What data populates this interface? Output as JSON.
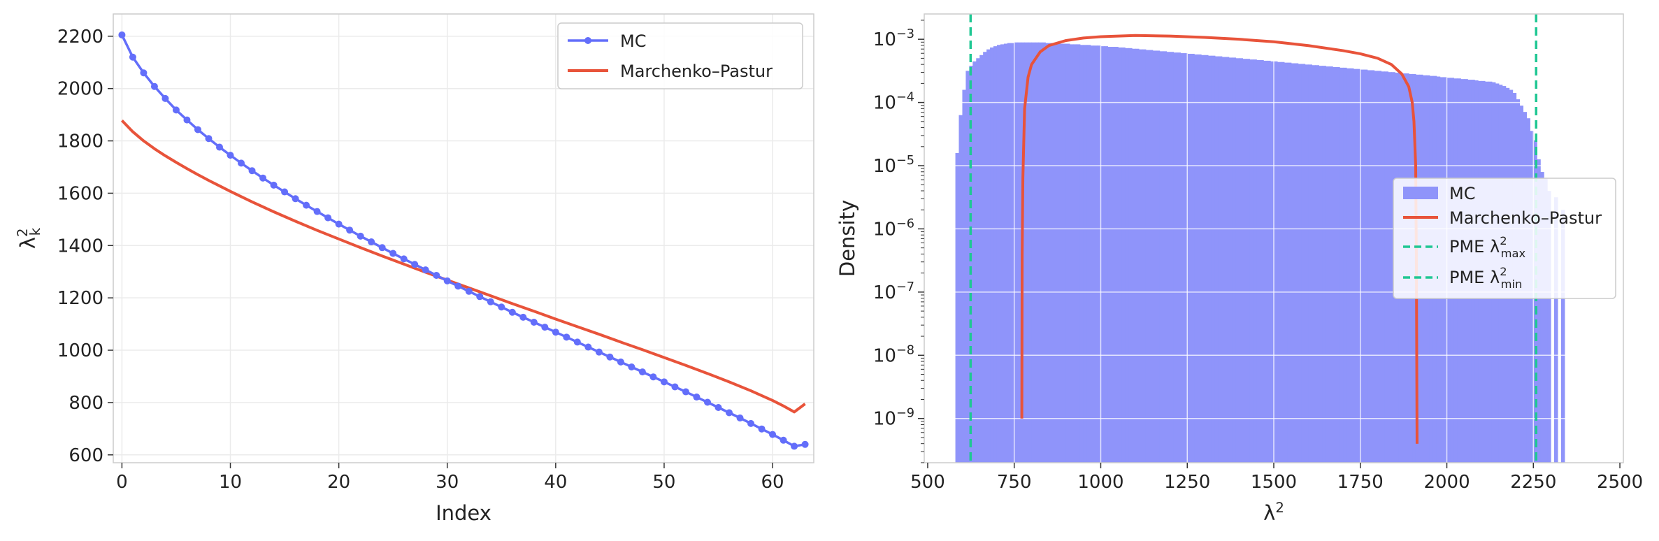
{
  "chart_data": [
    {
      "type": "line",
      "xlabel": "Index",
      "ylabel": "λ",
      "ylabel_sup": "2",
      "ylabel_sub": "k",
      "xlim": [
        -0.8,
        63.8
      ],
      "ylim": [
        570,
        2285
      ],
      "xticks": [
        0,
        10,
        20,
        30,
        40,
        50,
        60
      ],
      "yticks": [
        600,
        800,
        1000,
        1200,
        1400,
        1600,
        1800,
        2000,
        2200
      ],
      "grid": true,
      "legend_position": "top-right",
      "colors": {
        "mc": "#636EFA",
        "mp": "#E8533A"
      },
      "series": [
        {
          "name": "MC",
          "marker": "circle",
          "x": [
            0,
            1,
            2,
            3,
            4,
            5,
            6,
            7,
            8,
            9,
            10,
            11,
            12,
            13,
            14,
            15,
            16,
            17,
            18,
            19,
            20,
            21,
            22,
            23,
            24,
            25,
            26,
            27,
            28,
            29,
            30,
            31,
            32,
            33,
            34,
            35,
            36,
            37,
            38,
            39,
            40,
            41,
            42,
            43,
            44,
            45,
            46,
            47,
            48,
            49,
            50,
            51,
            52,
            53,
            54,
            55,
            56,
            57,
            58,
            59,
            60,
            61,
            62,
            63
          ],
          "values": [
            2205,
            2120,
            2060,
            2008,
            1962,
            1918,
            1880,
            1843,
            1809,
            1776,
            1745,
            1715,
            1686,
            1658,
            1631,
            1605,
            1579,
            1554,
            1530,
            1506,
            1482,
            1459,
            1436,
            1414,
            1392,
            1370,
            1349,
            1328,
            1307,
            1286,
            1265,
            1245,
            1225,
            1205,
            1185,
            1165,
            1145,
            1126,
            1107,
            1088,
            1069,
            1050,
            1031,
            1012,
            993,
            974,
            955,
            936,
            917,
            898,
            879,
            860,
            841,
            821,
            801,
            781,
            761,
            741,
            720,
            699,
            678,
            656,
            633,
            640
          ]
        },
        {
          "name": "Marchenko–Pastur",
          "x": [
            0,
            1,
            2,
            3,
            4,
            5,
            6,
            7,
            8,
            9,
            10,
            12,
            14,
            16,
            18,
            20,
            22,
            24,
            26,
            28,
            30,
            32,
            34,
            36,
            38,
            40,
            42,
            44,
            46,
            48,
            50,
            52,
            54,
            56,
            58,
            60,
            61,
            62,
            63
          ],
          "values": [
            1878,
            1835,
            1800,
            1770,
            1743,
            1718,
            1694,
            1671,
            1649,
            1628,
            1607,
            1567,
            1529,
            1493,
            1458,
            1425,
            1392,
            1360,
            1329,
            1298,
            1268,
            1238,
            1208,
            1178,
            1149,
            1119,
            1090,
            1061,
            1031,
            1002,
            972,
            942,
            911,
            879,
            845,
            808,
            787,
            764,
            795
          ]
        }
      ]
    },
    {
      "type": "bar",
      "xlabel": "λ",
      "xlabel_sup": "2",
      "ylabel": "Density",
      "y_scale": "log",
      "xlim": [
        490,
        2510
      ],
      "ylim_log10": [
        -9.7,
        -2.6
      ],
      "xticks": [
        500,
        750,
        1000,
        1250,
        1500,
        1750,
        2000,
        2250,
        2500
      ],
      "yticks_log10": [
        -9,
        -8,
        -7,
        -6,
        -5,
        -4,
        -3
      ],
      "ytick_base": "10",
      "grid": true,
      "legend_position": "center-right",
      "colors": {
        "mc": "#8F94FA",
        "mp": "#E8533A",
        "pme": "#1FC793"
      },
      "histogram": {
        "name": "MC",
        "bin_start": 580,
        "bin_width": 10,
        "values_log10": [
          -4.8,
          -4.2,
          -3.8,
          -3.5,
          -3.42,
          -3.35,
          -3.3,
          -3.25,
          -3.2,
          -3.16,
          -3.13,
          -3.11,
          -3.09,
          -3.08,
          -3.07,
          -3.06,
          -3.06,
          -3.05,
          -3.05,
          -3.05,
          -3.05,
          -3.05,
          -3.05,
          -3.05,
          -3.05,
          -3.05,
          -3.06,
          -3.06,
          -3.06,
          -3.06,
          -3.07,
          -3.07,
          -3.07,
          -3.08,
          -3.08,
          -3.08,
          -3.09,
          -3.09,
          -3.09,
          -3.1,
          -3.1,
          -3.1,
          -3.11,
          -3.11,
          -3.12,
          -3.12,
          -3.12,
          -3.13,
          -3.13,
          -3.14,
          -3.14,
          -3.15,
          -3.15,
          -3.16,
          -3.16,
          -3.17,
          -3.17,
          -3.18,
          -3.18,
          -3.19,
          -3.19,
          -3.2,
          -3.2,
          -3.21,
          -3.21,
          -3.22,
          -3.22,
          -3.23,
          -3.23,
          -3.24,
          -3.24,
          -3.25,
          -3.25,
          -3.26,
          -3.26,
          -3.27,
          -3.27,
          -3.28,
          -3.28,
          -3.29,
          -3.29,
          -3.3,
          -3.3,
          -3.31,
          -3.31,
          -3.32,
          -3.32,
          -3.33,
          -3.33,
          -3.34,
          -3.34,
          -3.35,
          -3.35,
          -3.36,
          -3.36,
          -3.37,
          -3.37,
          -3.38,
          -3.38,
          -3.39,
          -3.39,
          -3.4,
          -3.4,
          -3.41,
          -3.41,
          -3.42,
          -3.42,
          -3.43,
          -3.43,
          -3.44,
          -3.44,
          -3.45,
          -3.45,
          -3.46,
          -3.46,
          -3.47,
          -3.47,
          -3.48,
          -3.48,
          -3.49,
          -3.49,
          -3.5,
          -3.5,
          -3.51,
          -3.51,
          -3.52,
          -3.52,
          -3.53,
          -3.53,
          -3.54,
          -3.54,
          -3.55,
          -3.55,
          -3.56,
          -3.56,
          -3.57,
          -3.57,
          -3.58,
          -3.58,
          -3.59,
          -3.6,
          -3.6,
          -3.61,
          -3.61,
          -3.62,
          -3.62,
          -3.63,
          -3.63,
          -3.64,
          -3.64,
          -3.65,
          -3.66,
          -3.66,
          -3.67,
          -3.67,
          -3.68,
          -3.7,
          -3.72,
          -3.74,
          -3.77,
          -3.8,
          -3.85,
          -3.95,
          -4.05,
          -4.15,
          -4.25,
          -4.45,
          -4.6,
          -4.9,
          -5.1,
          -5.2,
          -5.4,
          -9.7,
          -5.5,
          -9.7,
          -5.7
        ]
      },
      "series": [
        {
          "name": "Marchenko–Pastur",
          "x": [
            772,
            773,
            775,
            780,
            790,
            800,
            825,
            850,
            900,
            950,
            1000,
            1100,
            1200,
            1300,
            1400,
            1500,
            1600,
            1700,
            1750,
            1800,
            1840,
            1870,
            1890,
            1900,
            1905,
            1910,
            1912,
            1914
          ],
          "values_log10": [
            -9.0,
            -6.4,
            -5.2,
            -4.1,
            -3.6,
            -3.4,
            -3.2,
            -3.1,
            -3.02,
            -2.98,
            -2.96,
            -2.94,
            -2.95,
            -2.97,
            -3.0,
            -3.04,
            -3.1,
            -3.18,
            -3.23,
            -3.3,
            -3.4,
            -3.55,
            -3.75,
            -4.0,
            -4.3,
            -5.0,
            -6.5,
            -9.4
          ]
        },
        {
          "name": "PME λ²max",
          "label_base": "PME λ",
          "sup": "2",
          "sub": "max",
          "x": 2258,
          "style": "dashed"
        },
        {
          "name": "PME λ²min",
          "label_base": "PME λ",
          "sup": "2",
          "sub": "min",
          "x": 624,
          "style": "dashed"
        }
      ]
    }
  ]
}
